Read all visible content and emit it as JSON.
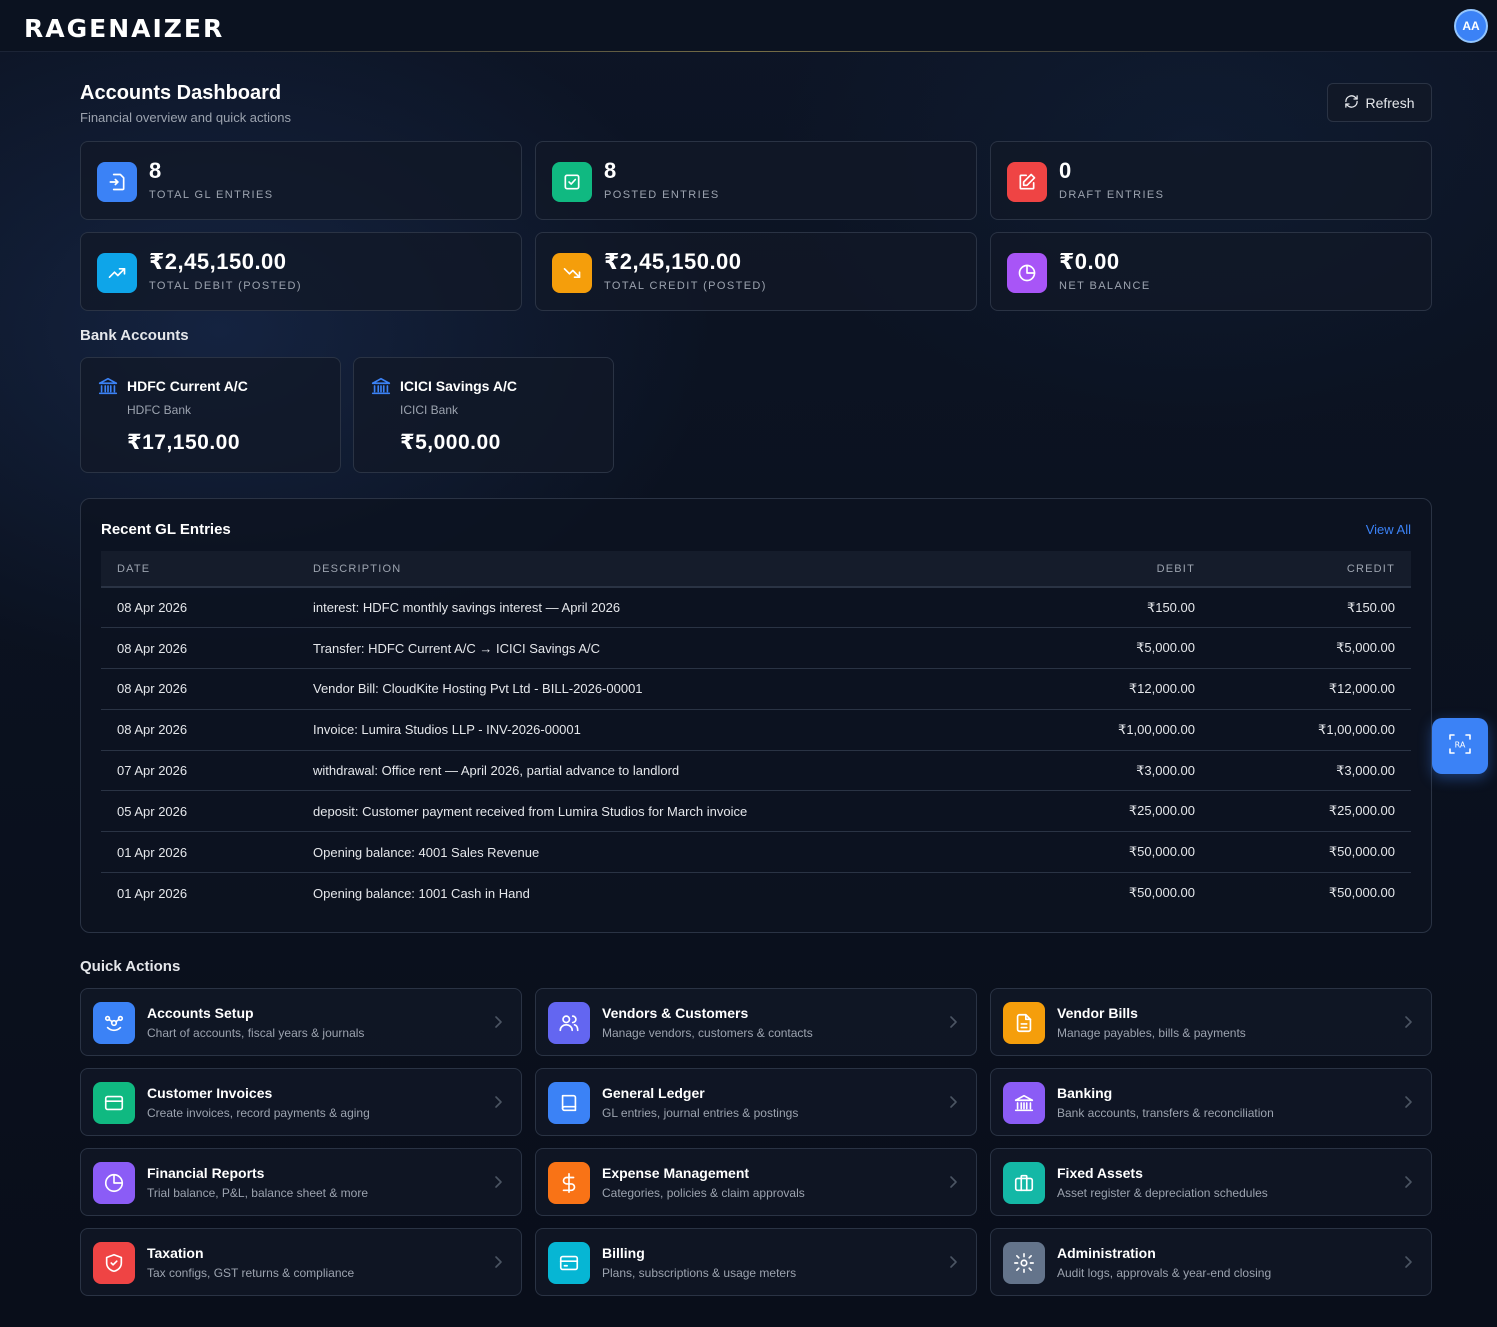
{
  "header": {
    "logo": "RAGENAIZER",
    "avatar_initials": "AA"
  },
  "page": {
    "title": "Accounts Dashboard",
    "subtitle": "Financial overview and quick actions",
    "refresh_label": "Refresh"
  },
  "stats": [
    {
      "value": "8",
      "label": "TOTAL GL ENTRIES",
      "icon": "document-import-icon",
      "color": "#3b82f6"
    },
    {
      "value": "8",
      "label": "POSTED ENTRIES",
      "icon": "checkbox-icon",
      "color": "#10b981"
    },
    {
      "value": "0",
      "label": "DRAFT ENTRIES",
      "icon": "edit-icon",
      "color": "#ef4444"
    },
    {
      "value": "₹2,45,150.00",
      "label": "TOTAL DEBIT (POSTED)",
      "icon": "trending-up-icon",
      "color": "#0ea5e9"
    },
    {
      "value": "₹2,45,150.00",
      "label": "TOTAL CREDIT (POSTED)",
      "icon": "trending-down-icon",
      "color": "#f59e0b"
    },
    {
      "value": "₹0.00",
      "label": "NET BALANCE",
      "icon": "pie-chart-icon",
      "color": "#a855f7"
    }
  ],
  "bank_accounts": {
    "title": "Bank Accounts",
    "items": [
      {
        "name": "HDFC Current A/C",
        "bank": "HDFC Bank",
        "balance": "₹17,150.00"
      },
      {
        "name": "ICICI Savings A/C",
        "bank": "ICICI Bank",
        "balance": "₹5,000.00"
      }
    ]
  },
  "gl": {
    "title": "Recent GL Entries",
    "view_all": "View All",
    "columns": [
      "DATE",
      "DESCRIPTION",
      "DEBIT",
      "CREDIT"
    ],
    "rows": [
      {
        "date": "08 Apr 2026",
        "description": "interest: HDFC monthly savings interest — April 2026",
        "debit": "₹150.00",
        "credit": "₹150.00"
      },
      {
        "date": "08 Apr 2026",
        "description": "Transfer: HDFC Current A/C → ICICI Savings A/C",
        "debit": "₹5,000.00",
        "credit": "₹5,000.00"
      },
      {
        "date": "08 Apr 2026",
        "description": "Vendor Bill: CloudKite Hosting Pvt Ltd - BILL-2026-00001",
        "debit": "₹12,000.00",
        "credit": "₹12,000.00"
      },
      {
        "date": "08 Apr 2026",
        "description": "Invoice: Lumira Studios LLP - INV-2026-00001",
        "debit": "₹1,00,000.00",
        "credit": "₹1,00,000.00"
      },
      {
        "date": "07 Apr 2026",
        "description": "withdrawal: Office rent — April 2026, partial advance to landlord",
        "debit": "₹3,000.00",
        "credit": "₹3,000.00"
      },
      {
        "date": "05 Apr 2026",
        "description": "deposit: Customer payment received from Lumira Studios for March invoice",
        "debit": "₹25,000.00",
        "credit": "₹25,000.00"
      },
      {
        "date": "01 Apr 2026",
        "description": "Opening balance: 4001 Sales Revenue",
        "debit": "₹50,000.00",
        "credit": "₹50,000.00"
      },
      {
        "date": "01 Apr 2026",
        "description": "Opening balance: 1001 Cash in Hand",
        "debit": "₹50,000.00",
        "credit": "₹50,000.00"
      }
    ]
  },
  "quick_actions": {
    "title": "Quick Actions",
    "items": [
      {
        "title": "Accounts Setup",
        "desc": "Chart of accounts, fiscal years & journals",
        "icon": "accounts-setup-icon",
        "color": "#3b82f6"
      },
      {
        "title": "Vendors & Customers",
        "desc": "Manage vendors, customers & contacts",
        "icon": "users-icon",
        "color": "#6366f1"
      },
      {
        "title": "Vendor Bills",
        "desc": "Manage payables, bills & payments",
        "icon": "file-text-icon",
        "color": "#f59e0b"
      },
      {
        "title": "Customer Invoices",
        "desc": "Create invoices, record payments & aging",
        "icon": "credit-card-icon",
        "color": "#10b981"
      },
      {
        "title": "General Ledger",
        "desc": "GL entries, journal entries & postings",
        "icon": "book-icon",
        "color": "#3b82f6"
      },
      {
        "title": "Banking",
        "desc": "Bank accounts, transfers & reconciliation",
        "icon": "bank-icon",
        "color": "#8b5cf6"
      },
      {
        "title": "Financial Reports",
        "desc": "Trial balance, P&L, balance sheet & more",
        "icon": "pie-chart-icon",
        "color": "#8b5cf6"
      },
      {
        "title": "Expense Management",
        "desc": "Categories, policies & claim approvals",
        "icon": "dollar-icon",
        "color": "#f97316"
      },
      {
        "title": "Fixed Assets",
        "desc": "Asset register & depreciation schedules",
        "icon": "briefcase-icon",
        "color": "#14b8a6"
      },
      {
        "title": "Taxation",
        "desc": "Tax configs, GST returns & compliance",
        "icon": "shield-icon",
        "color": "#ef4444"
      },
      {
        "title": "Billing",
        "desc": "Plans, subscriptions & usage meters",
        "icon": "card-icon",
        "color": "#06b6d4"
      },
      {
        "title": "Administration",
        "desc": "Audit logs, approvals & year-end closing",
        "icon": "settings-icon",
        "color": "#64748b"
      }
    ]
  },
  "colors": {
    "accent": "#3b82f6",
    "background": "#0b1220",
    "card_border": "#2a3344"
  }
}
